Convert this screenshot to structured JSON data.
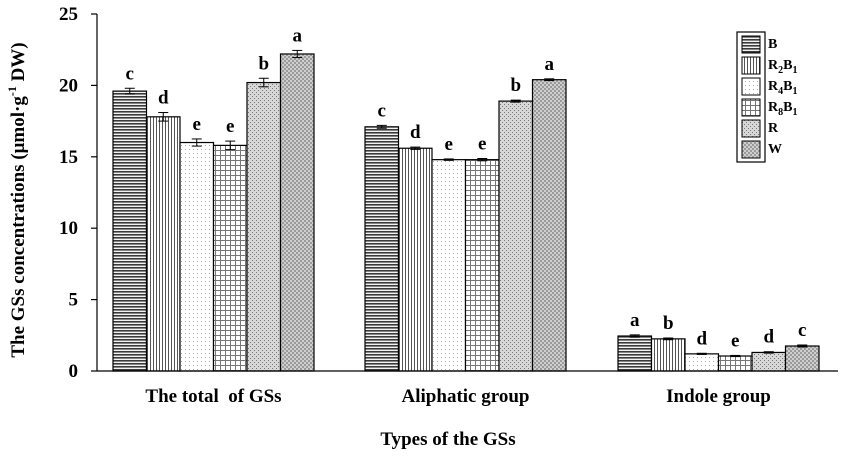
{
  "chart_data": {
    "type": "bar",
    "title": "",
    "xlabel": "Types of the GSs",
    "ylabel": "The GSs concentrations (μmol·g",
    "ylabel_sup": "-1",
    "ylabel_end": " DW)",
    "ylim": [
      0,
      25
    ],
    "yticks": [
      0,
      5,
      10,
      15,
      20,
      25
    ],
    "categories": [
      "The total  of GSs",
      "Aliphatic group",
      "Indole group"
    ],
    "legend_position": "top-right",
    "series": [
      {
        "name": "B",
        "name_main": "B",
        "name_sub": "",
        "name_post": "",
        "pattern": "hstripe-dense",
        "values": [
          19.6,
          17.1,
          2.45
        ],
        "errors": [
          0.2,
          0.1,
          0.08
        ],
        "letters": [
          "c",
          "c",
          "a"
        ]
      },
      {
        "name": "R2B1",
        "name_main": "R",
        "name_sub": "2",
        "name_post": "B1",
        "pattern": "vstripe",
        "values": [
          17.8,
          15.6,
          2.25
        ],
        "errors": [
          0.3,
          0.08,
          0.06
        ],
        "letters": [
          "d",
          "d",
          "b"
        ]
      },
      {
        "name": "R4B1",
        "name_main": "R",
        "name_sub": "4",
        "name_post": "B1",
        "pattern": "dots",
        "values": [
          16.0,
          14.8,
          1.2
        ],
        "errors": [
          0.25,
          0.05,
          0.04
        ],
        "letters": [
          "e",
          "e",
          "d"
        ]
      },
      {
        "name": "R8B1",
        "name_main": "R",
        "name_sub": "8",
        "name_post": "B1",
        "pattern": "grid",
        "values": [
          15.8,
          14.8,
          1.05
        ],
        "errors": [
          0.3,
          0.08,
          0.04
        ],
        "letters": [
          "e",
          "e",
          "e"
        ]
      },
      {
        "name": "R",
        "name_main": "R",
        "name_sub": "",
        "name_post": "",
        "pattern": "stipple",
        "values": [
          20.2,
          18.9,
          1.3
        ],
        "errors": [
          0.3,
          0.07,
          0.05
        ],
        "letters": [
          "b",
          "b",
          "d"
        ]
      },
      {
        "name": "W",
        "name_main": "W",
        "name_sub": "",
        "name_post": "",
        "pattern": "checker",
        "values": [
          22.2,
          20.4,
          1.75
        ],
        "errors": [
          0.25,
          0.06,
          0.07
        ],
        "letters": [
          "a",
          "a",
          "c"
        ]
      }
    ]
  }
}
